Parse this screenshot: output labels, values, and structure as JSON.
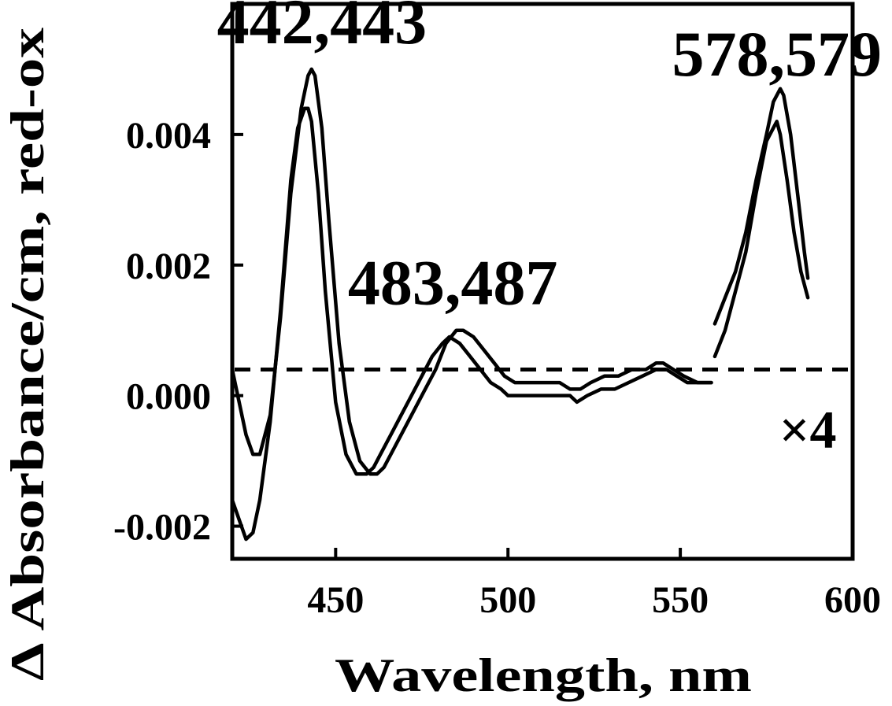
{
  "chart_data": {
    "type": "line",
    "xlabel": "Wavelength, nm",
    "ylabel": "Δ Absorbance/cm, red-ox",
    "xlim": [
      420,
      600
    ],
    "ylim": [
      -0.0025,
      0.006
    ],
    "x_ticks": [
      450,
      500,
      550,
      600
    ],
    "x_tick_labels": [
      "450",
      "500",
      "550",
      "600"
    ],
    "y_ticks": [
      -0.002,
      0.0,
      0.002,
      0.004
    ],
    "y_tick_labels": [
      "-0.002",
      "0.000",
      "0.002",
      "0.004"
    ],
    "reference_line": {
      "y": 0.0004,
      "style": "dashed"
    },
    "grid": false,
    "annotations": [
      {
        "text": "442,443",
        "x": 446,
        "y": 0.0054
      },
      {
        "text": "483,487",
        "x": 484,
        "y": 0.0014
      },
      {
        "text": "578,579",
        "x": 578,
        "y": 0.0049
      },
      {
        "text": "×4",
        "x": 587,
        "y": -0.0008
      }
    ],
    "series": [
      {
        "segment": "main",
        "x": [
          420,
          424,
          426,
          428,
          431,
          434,
          437,
          439,
          441,
          442,
          443,
          445,
          447,
          450,
          453,
          456,
          459,
          461,
          463,
          466,
          470,
          474,
          478,
          481,
          483,
          486,
          489,
          492,
          495,
          498,
          500,
          505,
          510,
          515,
          518,
          520,
          523,
          527,
          531,
          535,
          539,
          543,
          546,
          549,
          552,
          556,
          559
        ],
        "y": [
          -0.0016,
          -0.0022,
          -0.0021,
          -0.0016,
          -0.0004,
          0.0013,
          0.0033,
          0.0041,
          0.0044,
          0.0044,
          0.0042,
          0.0031,
          0.0016,
          -0.0001,
          -0.0009,
          -0.0012,
          -0.0012,
          -0.0011,
          -0.0009,
          -0.0006,
          -0.0002,
          0.0002,
          0.0006,
          0.0008,
          0.0009,
          0.0008,
          0.0006,
          0.0004,
          0.0002,
          0.0001,
          0.0,
          0.0,
          0.0,
          0.0,
          0.0,
          -0.0001,
          0.0,
          0.0001,
          0.0001,
          0.0002,
          0.0003,
          0.0004,
          0.0004,
          0.0003,
          0.0002,
          0.0002,
          0.0002
        ]
      },
      {
        "segment": "main",
        "x": [
          420,
          424,
          426,
          428,
          431,
          434,
          437,
          440,
          442,
          443,
          444,
          446,
          448,
          451,
          454,
          457,
          460,
          462,
          464,
          467,
          471,
          475,
          479,
          482,
          485,
          487,
          490,
          493,
          496,
          499,
          502,
          507,
          512,
          515,
          518,
          521,
          524,
          528,
          532,
          536,
          540,
          543,
          545,
          548,
          551,
          555,
          559
        ],
        "y": [
          0.0004,
          -0.0006,
          -0.0009,
          -0.0009,
          -0.0003,
          0.0012,
          0.0031,
          0.0044,
          0.0049,
          0.005,
          0.0049,
          0.0041,
          0.0027,
          0.0008,
          -0.0004,
          -0.001,
          -0.0012,
          -0.0012,
          -0.0011,
          -0.0008,
          -0.0004,
          0.0,
          0.0004,
          0.0008,
          0.001,
          0.001,
          0.0009,
          0.0007,
          0.0005,
          0.0003,
          0.0002,
          0.0002,
          0.0002,
          0.0002,
          0.0001,
          0.0001,
          0.0002,
          0.0003,
          0.0003,
          0.0004,
          0.0004,
          0.0005,
          0.0005,
          0.0004,
          0.0003,
          0.0002,
          0.0002
        ]
      },
      {
        "segment": "x4",
        "x": [
          560,
          563,
          566,
          569,
          572,
          575,
          577,
          578,
          579,
          581,
          583,
          585,
          587
        ],
        "y": [
          0.0006,
          0.001,
          0.0016,
          0.0022,
          0.0031,
          0.0039,
          0.0041,
          0.0042,
          0.004,
          0.0033,
          0.0025,
          0.0019,
          0.0015
        ]
      },
      {
        "segment": "x4",
        "x": [
          560,
          563,
          566,
          569,
          572,
          575,
          577,
          579,
          580,
          582,
          584,
          586,
          587
        ],
        "y": [
          0.0011,
          0.0015,
          0.0019,
          0.0025,
          0.0033,
          0.004,
          0.0045,
          0.0047,
          0.0046,
          0.004,
          0.0031,
          0.0022,
          0.0018
        ]
      }
    ]
  }
}
